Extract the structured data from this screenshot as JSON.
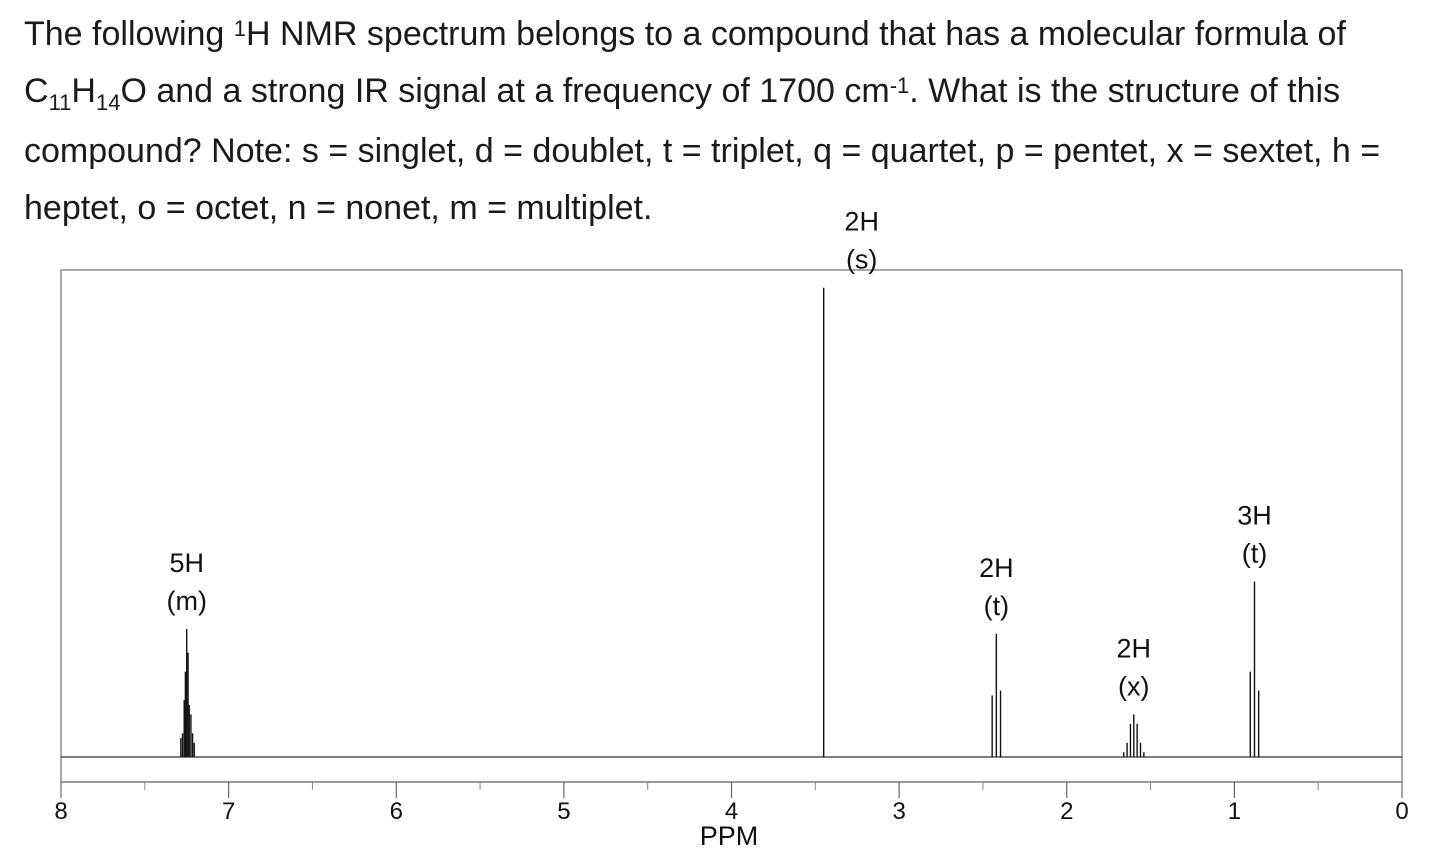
{
  "question": {
    "intro": "The following ",
    "nucleus_mass": "1",
    "nucleus_symbol": "H",
    "part_a": " NMR spectrum belongs to a compound that has a molecular formula of ",
    "formula_c": "C",
    "formula_c_count": "11",
    "formula_h": "H",
    "formula_h_count": "14",
    "formula_o": "O",
    "part_b": " and a strong IR signal at a frequency of 1700 cm",
    "ir_exponent": "-1",
    "part_c": ".  What is the structure of this compound?  Note: s = singlet, d = doublet, t = triplet, q = quartet, p = pentet, x = sextet, h = heptet, o = octet, n = nonet, m = multiplet."
  },
  "chart_data": {
    "type": "line",
    "title": "",
    "xlabel": "PPM",
    "ylabel": "",
    "xlim": [
      8,
      0
    ],
    "x_reversed": true,
    "ylim": [
      0,
      1
    ],
    "grid": false,
    "tick_labels": [
      "8",
      "7",
      "6",
      "5",
      "4",
      "3",
      "2",
      "1",
      "0"
    ],
    "major_ticks": [
      8,
      7,
      6,
      5,
      4,
      3,
      2,
      1,
      0
    ],
    "minor_ticks": [
      7.5,
      6.5,
      5.5,
      4.5,
      3.5,
      2.5,
      1.5,
      0.5
    ],
    "peaks": [
      {
        "shift": 7.25,
        "integration": "5H",
        "multiplicity": "(m)",
        "lines": [
          {
            "ppm": 7.285,
            "h": 0.04
          },
          {
            "ppm": 7.275,
            "h": 0.05
          },
          {
            "ppm": 7.265,
            "h": 0.12
          },
          {
            "ppm": 7.258,
            "h": 0.18
          },
          {
            "ppm": 7.25,
            "h": 0.27
          },
          {
            "ppm": 7.242,
            "h": 0.22
          },
          {
            "ppm": 7.235,
            "h": 0.11
          },
          {
            "ppm": 7.225,
            "h": 0.09
          },
          {
            "ppm": 7.215,
            "h": 0.05
          },
          {
            "ppm": 7.205,
            "h": 0.03
          }
        ]
      },
      {
        "shift": 3.45,
        "integration": "2H",
        "multiplicity": "(s)",
        "lines": [
          {
            "ppm": 3.45,
            "h": 0.99
          }
        ]
      },
      {
        "shift": 2.42,
        "integration": "2H",
        "multiplicity": "(t)",
        "lines": [
          {
            "ppm": 2.445,
            "h": 0.13
          },
          {
            "ppm": 2.42,
            "h": 0.26
          },
          {
            "ppm": 2.395,
            "h": 0.14
          }
        ]
      },
      {
        "shift": 1.6,
        "integration": "2H",
        "multiplicity": "(x)",
        "lines": [
          {
            "ppm": 1.66,
            "h": 0.01
          },
          {
            "ppm": 1.64,
            "h": 0.03
          },
          {
            "ppm": 1.62,
            "h": 0.07
          },
          {
            "ppm": 1.6,
            "h": 0.09
          },
          {
            "ppm": 1.58,
            "h": 0.07
          },
          {
            "ppm": 1.56,
            "h": 0.03
          },
          {
            "ppm": 1.54,
            "h": 0.01
          }
        ]
      },
      {
        "shift": 0.88,
        "integration": "3H",
        "multiplicity": "(t)",
        "lines": [
          {
            "ppm": 0.905,
            "h": 0.18
          },
          {
            "ppm": 0.88,
            "h": 0.37
          },
          {
            "ppm": 0.855,
            "h": 0.14
          }
        ]
      }
    ]
  }
}
